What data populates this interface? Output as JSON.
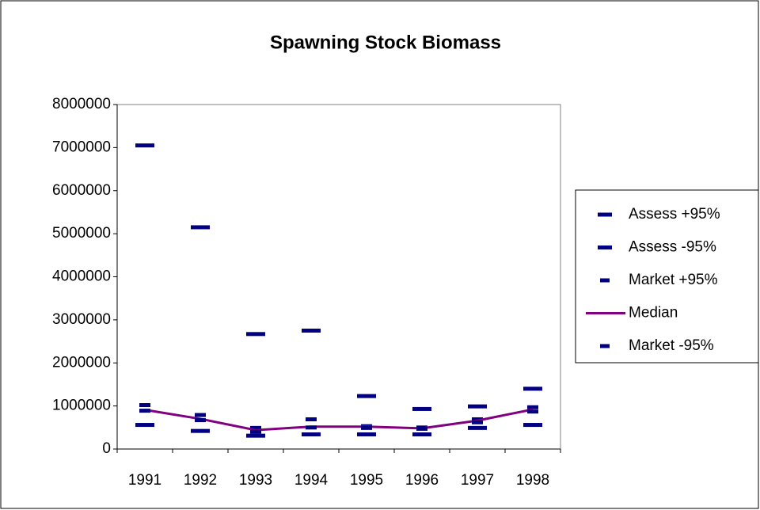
{
  "chart_data": {
    "type": "line",
    "title": "Spawning Stock Biomass",
    "categories": [
      "1991",
      "1992",
      "1993",
      "1994",
      "1995",
      "1996",
      "1997",
      "1998"
    ],
    "series": [
      {
        "name": "Assess +95%",
        "color": "#000080",
        "style": "marker",
        "values": [
          7050000,
          5150000,
          2670000,
          2750000,
          1230000,
          930000,
          990000,
          1400000
        ]
      },
      {
        "name": "Assess -95%",
        "color": "#000080",
        "style": "marker",
        "values": [
          560000,
          420000,
          310000,
          340000,
          340000,
          340000,
          490000,
          560000
        ]
      },
      {
        "name": "Market +95%",
        "color": "#000080",
        "style": "marker",
        "values": [
          1020000,
          790000,
          490000,
          690000,
          530000,
          500000,
          690000,
          970000
        ]
      },
      {
        "name": "Median",
        "color": "#800080",
        "style": "line",
        "values": [
          910000,
          700000,
          440000,
          520000,
          520000,
          480000,
          660000,
          920000
        ]
      },
      {
        "name": "Market -95%",
        "color": "#000080",
        "style": "marker",
        "values": [
          890000,
          670000,
          400000,
          500000,
          490000,
          470000,
          620000,
          870000
        ]
      }
    ],
    "ylim": [
      0,
      8000000
    ],
    "yticks": [
      0,
      1000000,
      2000000,
      3000000,
      4000000,
      5000000,
      6000000,
      7000000,
      8000000
    ],
    "legend": "right"
  }
}
